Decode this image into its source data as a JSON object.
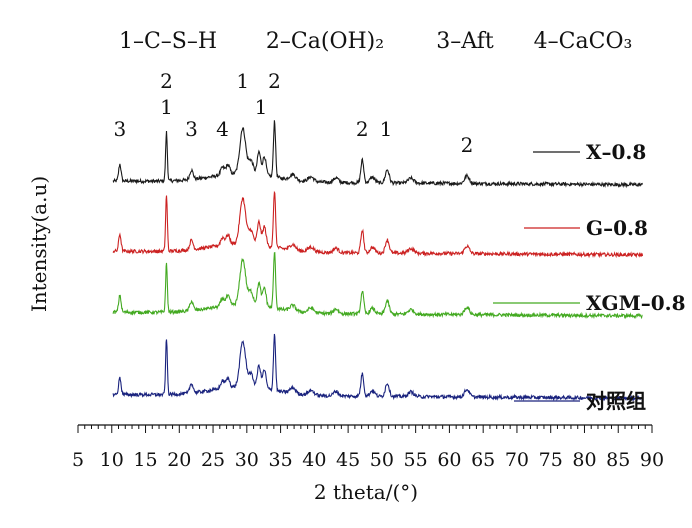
{
  "chart_data": {
    "type": "line",
    "title": "",
    "phase_key": [
      "1–C–S–H",
      "2–Ca(OH)₂",
      "3–Aft",
      "4–CaCO₃"
    ],
    "xlabel": "2 theta/(°)",
    "ylabel": "Intensity(a.u)",
    "xlim": [
      5,
      90
    ],
    "x_ticks": [
      5,
      10,
      15,
      20,
      25,
      30,
      35,
      40,
      45,
      50,
      55,
      60,
      65,
      70,
      75,
      80,
      85,
      90
    ],
    "grid": false,
    "legend_placement": "right, beside each curve",
    "series": [
      {
        "name": "X–0.8",
        "color": "#1a1a1a",
        "baseline": 0.8
      },
      {
        "name": "G–0.8",
        "color": "#cc2222",
        "baseline": 0.57
      },
      {
        "name": "XGM–0.8",
        "color": "#44aa22",
        "baseline": 0.37
      },
      {
        "name": "对照组",
        "color": "#1a237e",
        "baseline": 0.1
      }
    ],
    "peaks": [
      {
        "x": 11.2,
        "h": 0.09,
        "w": 0.25
      },
      {
        "x": 18.1,
        "h": 0.26,
        "w": 0.18
      },
      {
        "x": 21.8,
        "h": 0.05,
        "w": 0.35
      },
      {
        "x": 26.4,
        "h": 0.04,
        "w": 0.4
      },
      {
        "x": 27.2,
        "h": 0.05,
        "w": 0.4
      },
      {
        "x": 29.4,
        "h": 0.24,
        "w": 0.6
      },
      {
        "x": 30.6,
        "h": 0.07,
        "w": 0.5
      },
      {
        "x": 31.8,
        "h": 0.12,
        "w": 0.35
      },
      {
        "x": 32.6,
        "h": 0.1,
        "w": 0.35
      },
      {
        "x": 34.1,
        "h": 0.3,
        "w": 0.22
      },
      {
        "x": 36.8,
        "h": 0.03,
        "w": 0.6
      },
      {
        "x": 39.5,
        "h": 0.025,
        "w": 0.6
      },
      {
        "x": 43.2,
        "h": 0.025,
        "w": 0.5
      },
      {
        "x": 47.1,
        "h": 0.12,
        "w": 0.3
      },
      {
        "x": 48.6,
        "h": 0.03,
        "w": 0.5
      },
      {
        "x": 50.8,
        "h": 0.07,
        "w": 0.4
      },
      {
        "x": 54.3,
        "h": 0.025,
        "w": 0.6
      },
      {
        "x": 62.6,
        "h": 0.04,
        "w": 0.5
      }
    ],
    "peak_labels": [
      {
        "text": "3",
        "x": 11.2,
        "level": 0
      },
      {
        "text": "1",
        "x": 18.1,
        "level": 1
      },
      {
        "text": "2",
        "x": 18.1,
        "level": 2
      },
      {
        "text": "3",
        "x": 21.8,
        "level": 0
      },
      {
        "text": "4",
        "x": 26.4,
        "level": 0
      },
      {
        "text": "1",
        "x": 29.4,
        "level": 2
      },
      {
        "text": "1",
        "x": 32.1,
        "level": 1
      },
      {
        "text": "2",
        "x": 34.1,
        "level": 2
      },
      {
        "text": "2",
        "x": 47.1,
        "level": 0
      },
      {
        "text": "1",
        "x": 50.6,
        "level": 0
      },
      {
        "text": "2",
        "x": 62.6,
        "level": -1
      }
    ]
  }
}
